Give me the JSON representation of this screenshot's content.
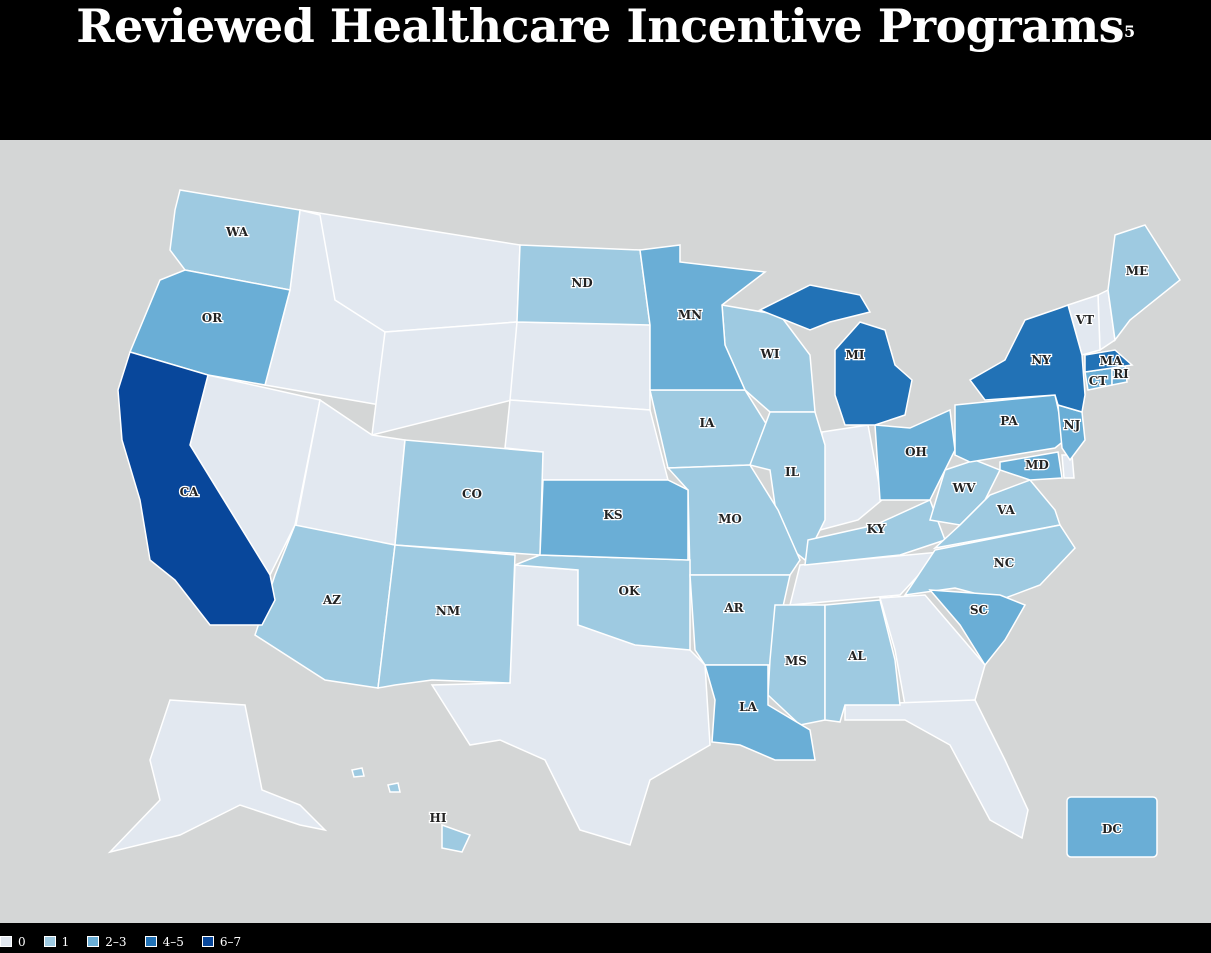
{
  "title": "Reviewed Healthcare Incentive Programs",
  "footnote": "5",
  "colors": {
    "c0": "#e2e8f0",
    "c1": "#9ecae1",
    "c2": "#6aaed6",
    "c4": "#2272b6",
    "c6": "#08479b",
    "water": "#d4d6d6"
  },
  "legend": [
    {
      "label": "0",
      "color": "#e2e8f0"
    },
    {
      "label": "1",
      "color": "#9ecae1"
    },
    {
      "label": "2–3",
      "color": "#6aaed6"
    },
    {
      "label": "4–5",
      "color": "#2272b6"
    },
    {
      "label": "6–7",
      "color": "#08479b"
    }
  ],
  "states": {
    "WA": "WA",
    "OR": "OR",
    "CA": "CA",
    "ND": "ND",
    "MN": "MN",
    "WI": "WI",
    "MI": "MI",
    "IA": "IA",
    "IL": "IL",
    "CO": "CO",
    "KS": "KS",
    "MO": "MO",
    "KY": "KY",
    "OH": "OH",
    "PA": "PA",
    "NY": "NY",
    "VT": "VT",
    "ME": "ME",
    "MA": "MA",
    "CT": "CT",
    "RI": "RI",
    "NJ": "NJ",
    "MD": "MD",
    "WV": "WV",
    "VA": "VA",
    "NC": "NC",
    "SC": "SC",
    "AZ": "AZ",
    "NM": "NM",
    "OK": "OK",
    "AR": "AR",
    "MS": "MS",
    "AL": "AL",
    "LA": "LA",
    "HI": "HI",
    "DC": "DC"
  }
}
